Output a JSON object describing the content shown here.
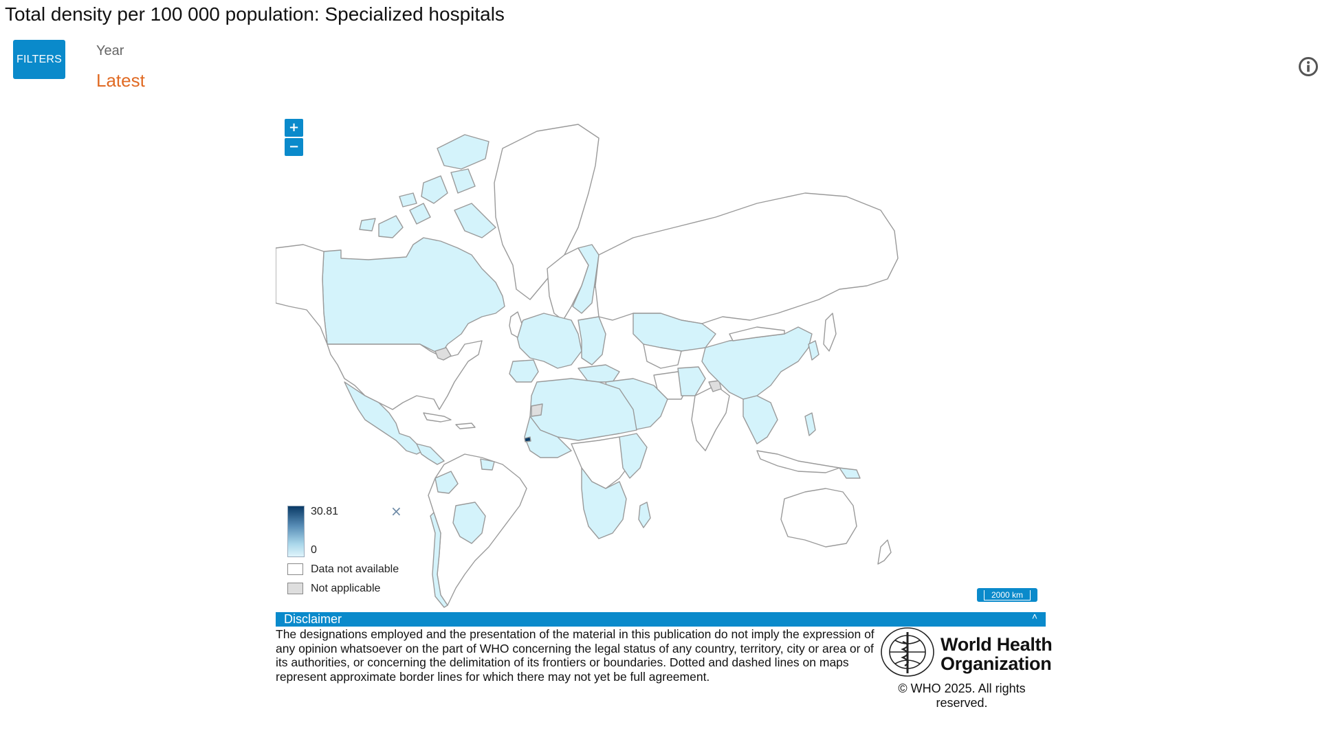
{
  "page": {
    "title": "Total density per 100 000 population: Specialized hospitals"
  },
  "filters": {
    "button_label": "FILTERS",
    "year_label": "Year",
    "year_value": "Latest"
  },
  "icons": {
    "info": "info-icon",
    "close": "close-icon"
  },
  "map": {
    "zoom_in_label": "+",
    "zoom_out_label": "−",
    "scale_label": "2000 km",
    "colors": {
      "has_data": "#d4f3fb",
      "no_data": "#ffffff",
      "not_applicable": "#dedede",
      "border": "#9a9a9a",
      "high_value": "#0a3a66"
    },
    "legend": {
      "max": "30.81",
      "min": "0",
      "close": "×",
      "data_not_available": "Data not available",
      "not_applicable": "Not applicable"
    }
  },
  "disclaimer": {
    "title": "Disclaimer",
    "toggle": "˄",
    "text": "The designations employed and the presentation of the material in this publication do not imply the expression of any opinion whatsoever on the part of WHO concerning the legal status of any country, territory, city or area or of its authorities, or concerning the delimitation of its frontiers or boundaries. Dotted and dashed lines on maps represent approximate border lines for which there may not yet be full agreement."
  },
  "footer": {
    "org_line1": "World Health",
    "org_line2": "Organization",
    "copyright": "© WHO 2025. All rights reserved."
  },
  "theme": {
    "accent": "#0a8acb",
    "year_color": "#e06a23"
  }
}
